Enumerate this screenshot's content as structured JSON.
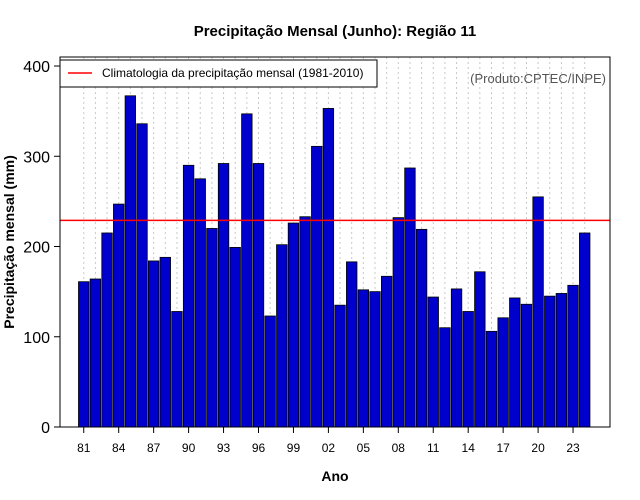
{
  "chart_data": {
    "type": "bar",
    "title": "Precipitação Mensal (Junho): Região 11",
    "xlabel": "Ano",
    "ylabel": "Precipitação mensal (mm)",
    "source_note": "(Produto:CPTEC/INPE)",
    "ylim": [
      0,
      410
    ],
    "yticks": [
      0,
      100,
      200,
      300,
      400
    ],
    "grid": "vertical dotted",
    "legend": {
      "position": "top-left",
      "entries": [
        {
          "label": "Climatologia da precipitação mensal (1981-2010)",
          "color": "#ff0000",
          "style": "line"
        }
      ]
    },
    "categories": [
      "1981",
      "1982",
      "1983",
      "1984",
      "1985",
      "1986",
      "1987",
      "1988",
      "1989",
      "1990",
      "1991",
      "1992",
      "1993",
      "1994",
      "1995",
      "1996",
      "1997",
      "1998",
      "1999",
      "2000",
      "2001",
      "2002",
      "2003",
      "2004",
      "2005",
      "2006",
      "2007",
      "2008",
      "2009",
      "2010",
      "2011",
      "2012",
      "2013",
      "2014",
      "2015",
      "2016",
      "2017",
      "2018",
      "2019",
      "2020",
      "2021",
      "2022",
      "2023",
      "2024"
    ],
    "xtick_labels": [
      {
        "index": 0,
        "label": "81"
      },
      {
        "index": 3,
        "label": "84"
      },
      {
        "index": 6,
        "label": "87"
      },
      {
        "index": 9,
        "label": "90"
      },
      {
        "index": 12,
        "label": "93"
      },
      {
        "index": 15,
        "label": "96"
      },
      {
        "index": 18,
        "label": "99"
      },
      {
        "index": 21,
        "label": "02"
      },
      {
        "index": 24,
        "label": "05"
      },
      {
        "index": 27,
        "label": "08"
      },
      {
        "index": 30,
        "label": "11"
      },
      {
        "index": 33,
        "label": "14"
      },
      {
        "index": 36,
        "label": "17"
      },
      {
        "index": 39,
        "label": "20"
      },
      {
        "index": 42,
        "label": "23"
      }
    ],
    "series": [
      {
        "name": "Precipitação mensal",
        "color": "#0000cc",
        "values": [
          161,
          164,
          215,
          247,
          367,
          336,
          184,
          188,
          128,
          290,
          275,
          220,
          292,
          199,
          347,
          292,
          123,
          202,
          226,
          233,
          311,
          353,
          135,
          183,
          152,
          150,
          167,
          232,
          287,
          219,
          144,
          110,
          153,
          128,
          172,
          106,
          121,
          143,
          136,
          255,
          145,
          148,
          157,
          215
        ]
      }
    ],
    "climatology": 229
  }
}
